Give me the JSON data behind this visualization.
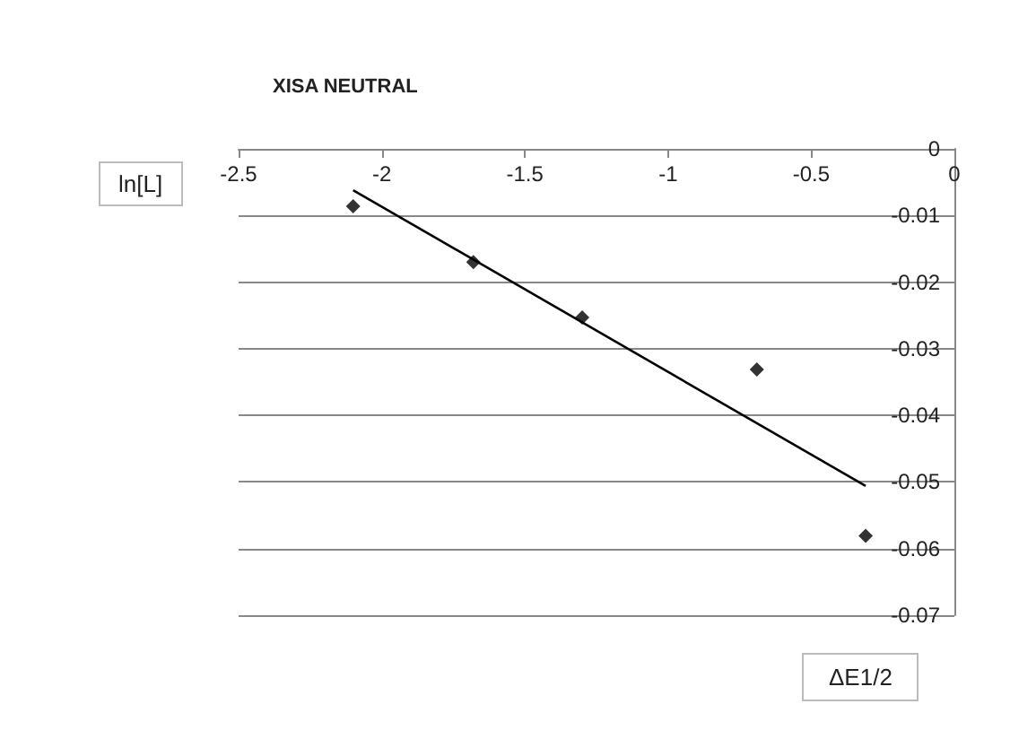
{
  "chart_data": {
    "type": "scatter",
    "title": "XISA NEUTRAL",
    "xlabel": "ΔE1/2",
    "ylabel": "ln[L]",
    "x": [
      -2.1,
      -1.68,
      -1.3,
      -0.69,
      -0.31
    ],
    "series": [
      {
        "color": "#000000",
        "values": [
          -0.0086,
          -0.017,
          -0.0253,
          -0.0331,
          -0.0581
        ]
      },
      {
        "type": "line",
        "color": "#000000",
        "marker": "none",
        "x": [
          -2.1,
          -0.31
        ],
        "values": [
          -0.0062,
          -0.0506
        ]
      }
    ],
    "xlim": [
      -2.5,
      0
    ],
    "xticks": [
      -2.5,
      -2,
      -1.5,
      -1,
      -0.5,
      0
    ],
    "ylim": [
      -0.07,
      0
    ],
    "yticks": [
      -0.07,
      -0.06,
      -0.05,
      -0.04,
      -0.03,
      -0.02,
      -0.01,
      0
    ],
    "grid": "y",
    "marker": "diamond"
  }
}
